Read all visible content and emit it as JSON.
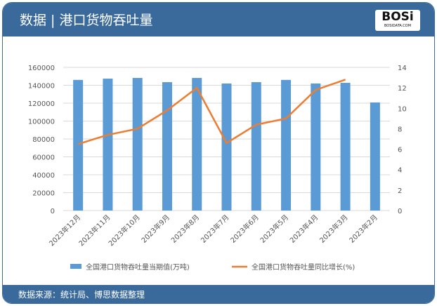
{
  "header": {
    "title": "数据 | 港口货物吞吐量",
    "logo": "BOSi",
    "logo_sub": "BOSIDATA.COM"
  },
  "footer": {
    "source": "数据来源：统计局、博思数据整理"
  },
  "chart_data": {
    "type": "bar+line",
    "categories": [
      "2023年12月",
      "2023年11月",
      "2023年10月",
      "2023年9月",
      "2023年8月",
      "2023年7月",
      "2023年6月",
      "2023年5月",
      "2023年4月",
      "2023年3月",
      "2023年2月"
    ],
    "series": [
      {
        "name": "全国港口货物吞吐量当期值(万吨)",
        "type": "bar",
        "axis": "left",
        "color": "#5b9bd5",
        "values": [
          146000,
          147400,
          148200,
          143500,
          148200,
          142000,
          143500,
          146000,
          142000,
          142700,
          120800
        ]
      },
      {
        "name": "全国港口货物吞吐量同比增长(%)",
        "type": "line",
        "axis": "right",
        "color": "#ed7d31",
        "values": [
          6.5,
          7.4,
          8.0,
          9.8,
          12.0,
          6.6,
          8.4,
          9.0,
          11.8,
          12.8,
          null
        ]
      }
    ],
    "ylim_left": [
      0,
      160000
    ],
    "yticks_left": [
      "0",
      "20000",
      "40000",
      "60000",
      "80000",
      "100000",
      "120000",
      "140000",
      "160000"
    ],
    "ylim_right": [
      0,
      14
    ],
    "yticks_right": [
      "0",
      "2",
      "4",
      "6",
      "8",
      "10",
      "12",
      "14"
    ],
    "grid": true,
    "legend": "bottom"
  }
}
